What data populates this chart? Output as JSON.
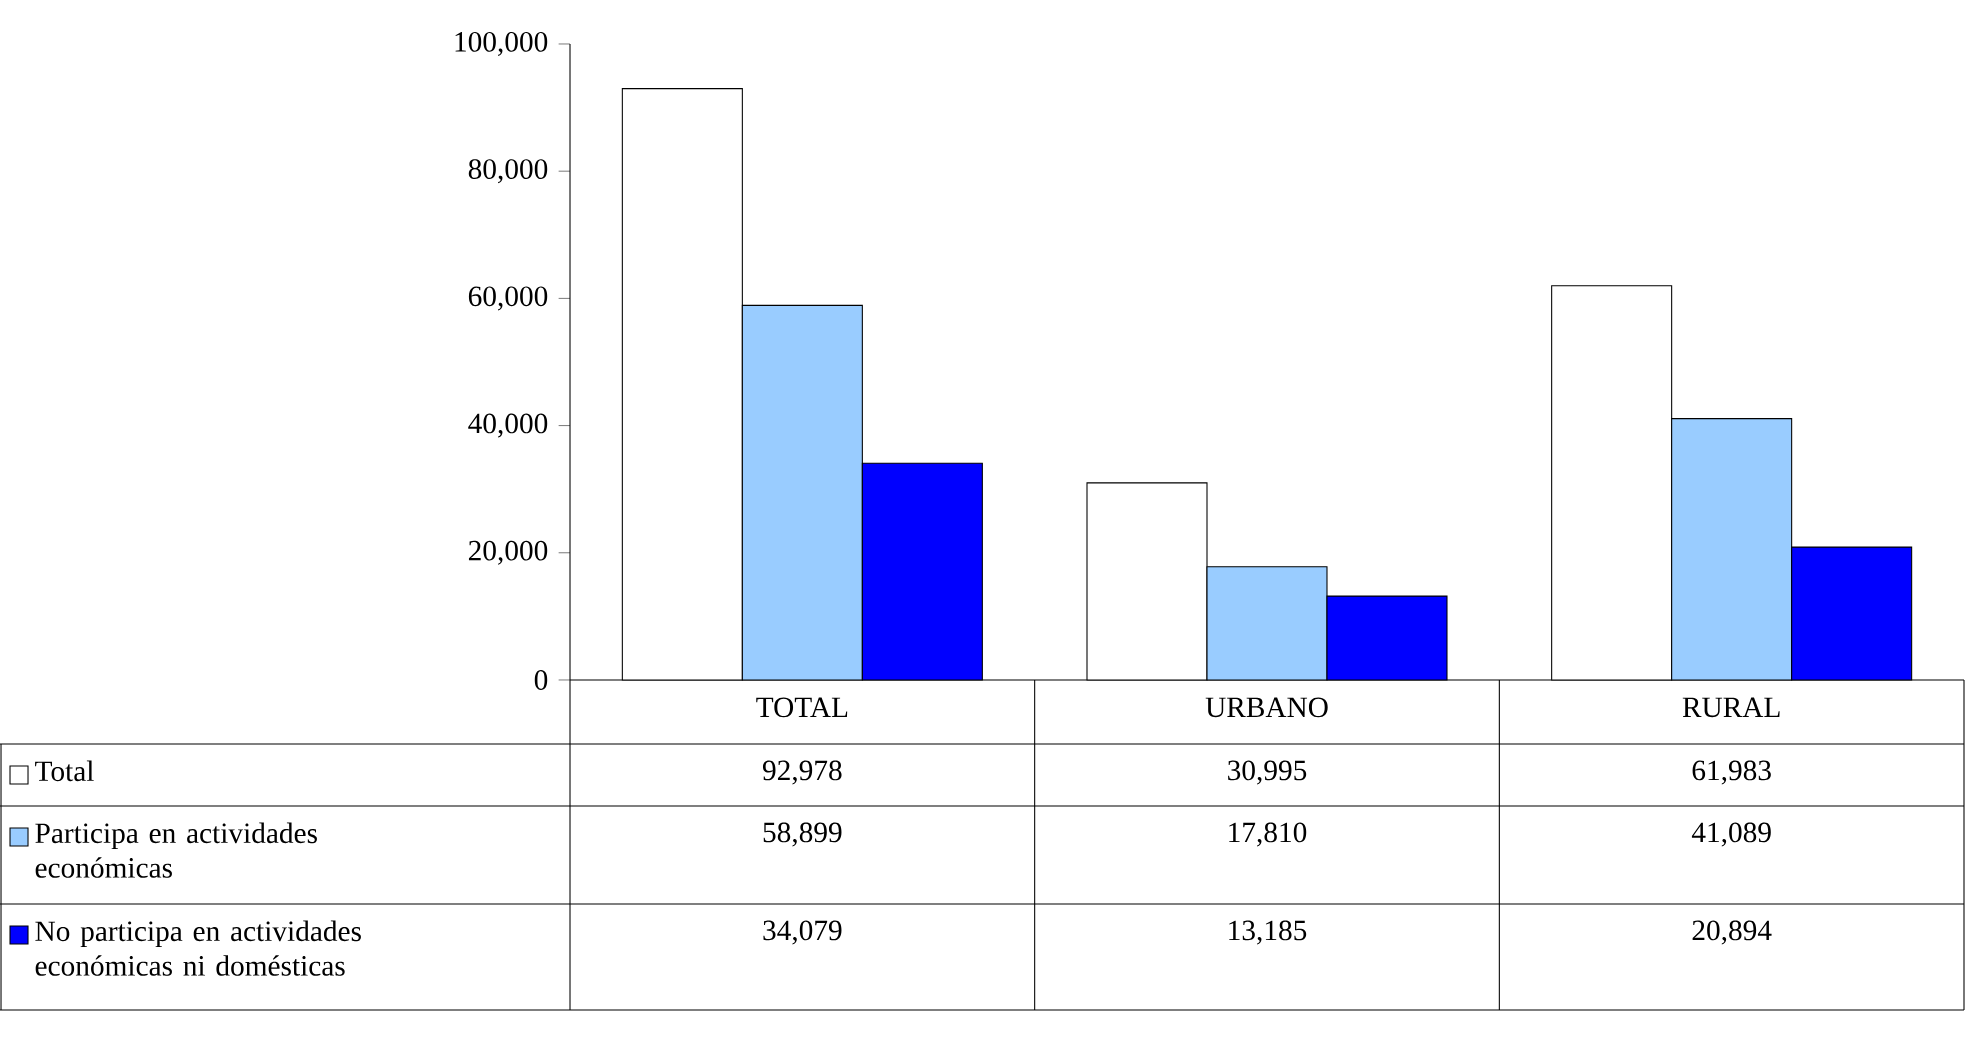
{
  "chart_data": {
    "type": "bar",
    "categories": [
      "TOTAL",
      "URBANO",
      "RURAL"
    ],
    "series": [
      {
        "name": "Total",
        "color": "#ffffff",
        "values": [
          92978,
          30995,
          61983
        ],
        "value_labels": [
          "92,978",
          "30,995",
          "61,983"
        ]
      },
      {
        "name": "Participa en actividades económicas",
        "color": "#99ccff",
        "values": [
          58899,
          17810,
          41089
        ],
        "value_labels": [
          "58,899",
          "17,810",
          "41,089"
        ]
      },
      {
        "name": "No participa en actividades económicas ni domésticas",
        "color": "#0000ff",
        "values": [
          34079,
          13185,
          20894
        ],
        "value_labels": [
          "34,079",
          "13,185",
          "20,894"
        ]
      }
    ],
    "ylim": [
      0,
      100000
    ],
    "yticks": [
      {
        "value": 0,
        "label": "0"
      },
      {
        "value": 20000,
        "label": "20,000"
      },
      {
        "value": 40000,
        "label": "40,000"
      },
      {
        "value": 60000,
        "label": "60,000"
      },
      {
        "value": 80000,
        "label": "80,000"
      },
      {
        "value": 100000,
        "label": "100,000"
      }
    ],
    "legend": "bottom"
  }
}
